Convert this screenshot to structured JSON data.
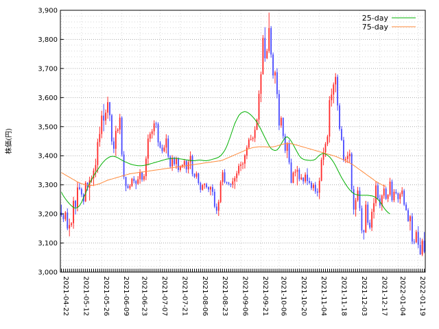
{
  "chart_data": {
    "type": "candlestick",
    "ylabel": "株価(円)",
    "ylim": [
      3000,
      3900
    ],
    "yticks": [
      3000,
      3100,
      3200,
      3300,
      3400,
      3500,
      3600,
      3700,
      3800,
      3900
    ],
    "ytick_labels": [
      "3,000",
      "3,100",
      "3,200",
      "3,300",
      "3,400",
      "3,500",
      "3,600",
      "3,700",
      "3,800",
      "3,900"
    ],
    "xticks": [
      "2021-04-22",
      "2021-05-12",
      "2021-05-26",
      "2021-06-09",
      "2021-06-23",
      "2021-07-07",
      "2021-07-21",
      "2021-08-06",
      "2021-08-23",
      "2021-09-06",
      "2021-09-21",
      "2021-10-06",
      "2021-10-20",
      "2021-11-04",
      "2021-11-18",
      "2021-12-03",
      "2021-12-17",
      "2022-01-04",
      "2022-01-19"
    ],
    "grid": true,
    "legend_position": "top-right",
    "colors": {
      "up": "#ff2a2a",
      "down": "#4a4aff",
      "ma25": "#00b000",
      "ma75": "#ff8a3a"
    },
    "series": [
      {
        "name": "25-day",
        "values": [
          3275,
          3262,
          3252,
          3243,
          3235,
          3228,
          3222,
          3220,
          3222,
          3228,
          3240,
          3256,
          3270,
          3290,
          3305,
          3318,
          3330,
          3342,
          3352,
          3362,
          3372,
          3380,
          3387,
          3392,
          3396,
          3398,
          3398,
          3396,
          3393,
          3389,
          3385,
          3381,
          3378,
          3375,
          3372,
          3370,
          3368,
          3367,
          3366,
          3366,
          3366,
          3367,
          3368,
          3370,
          3372,
          3374,
          3376,
          3378,
          3380,
          3382,
          3384,
          3386,
          3388,
          3389,
          3390,
          3391,
          3391,
          3391,
          3390,
          3389,
          3388,
          3387,
          3386,
          3385,
          3384,
          3383,
          3383,
          3384,
          3385,
          3385,
          3384,
          3383,
          3383,
          3384,
          3386,
          3388,
          3390,
          3392,
          3395,
          3400,
          3408,
          3418,
          3432,
          3450,
          3470,
          3490,
          3510,
          3525,
          3538,
          3546,
          3550,
          3552,
          3550,
          3546,
          3540,
          3533,
          3525,
          3515,
          3503,
          3490,
          3476,
          3462,
          3448,
          3435,
          3425,
          3420,
          3418,
          3420,
          3428,
          3440,
          3452,
          3462,
          3465,
          3460,
          3450,
          3438,
          3425,
          3412,
          3400,
          3392,
          3388,
          3386,
          3385,
          3384,
          3384,
          3385,
          3388,
          3395,
          3402,
          3406,
          3408,
          3406,
          3402,
          3396,
          3388,
          3378,
          3366,
          3352,
          3338,
          3325,
          3313,
          3302,
          3292,
          3283,
          3276,
          3270,
          3267,
          3265,
          3264,
          3264,
          3264,
          3264,
          3264,
          3263,
          3262,
          3260,
          3256,
          3250,
          3242,
          3232,
          3221,
          3212,
          3205,
          3200
        ]
      },
      {
        "name": "75-day",
        "values": [
          3342,
          3338,
          3334,
          3330,
          3326,
          3322,
          3318,
          3314,
          3310,
          3307,
          3304,
          3302,
          3300,
          3299,
          3298,
          3298,
          3299,
          3300,
          3302,
          3304,
          3307,
          3310,
          3313,
          3316,
          3318,
          3320,
          3322,
          3324,
          3326,
          3328,
          3330,
          3332,
          3334,
          3336,
          3338,
          3339,
          3340,
          3341,
          3342,
          3343,
          3344,
          3345,
          3346,
          3347,
          3348,
          3349,
          3350,
          3351,
          3352,
          3353,
          3354,
          3355,
          3356,
          3357,
          3358,
          3359,
          3360,
          3361,
          3362,
          3363,
          3364,
          3365,
          3366,
          3367,
          3368,
          3369,
          3370,
          3371,
          3372,
          3373,
          3374,
          3375,
          3376,
          3377,
          3378,
          3379,
          3380,
          3381,
          3382,
          3383,
          3385,
          3388,
          3391,
          3394,
          3397,
          3400,
          3403,
          3406,
          3409,
          3412,
          3415,
          3418,
          3421,
          3424,
          3426,
          3428,
          3429,
          3430,
          3431,
          3431,
          3431,
          3431,
          3430,
          3430,
          3430,
          3431,
          3432,
          3434,
          3436,
          3438,
          3440,
          3441,
          3442,
          3442,
          3441,
          3440,
          3438,
          3436,
          3434,
          3432,
          3430,
          3428,
          3426,
          3424,
          3422,
          3420,
          3418,
          3416,
          3414,
          3412,
          3410,
          3408,
          3406,
          3404,
          3402,
          3400,
          3398,
          3395,
          3392,
          3389,
          3386,
          3383,
          3379,
          3375,
          3371,
          3367,
          3362,
          3357,
          3352,
          3347,
          3342,
          3337,
          3332,
          3327,
          3322,
          3317,
          3312,
          3308,
          3304,
          3300,
          3297,
          3295
        ]
      }
    ],
    "ohlc": [
      [
        3205,
        3232,
        3190,
        3196
      ],
      [
        3196,
        3203,
        3172,
        3182
      ],
      [
        3182,
        3210,
        3175,
        3205
      ],
      [
        3205,
        3219,
        3144,
        3150
      ],
      [
        3150,
        3184,
        3123,
        3162
      ],
      [
        3162,
        3172,
        3155,
        3168
      ],
      [
        3168,
        3259,
        3149,
        3245
      ],
      [
        3245,
        3248,
        3198,
        3223
      ],
      [
        3223,
        3311,
        3209,
        3291
      ],
      [
        3291,
        3306,
        3282,
        3286
      ],
      [
        3286,
        3291,
        3258,
        3267
      ],
      [
        3267,
        3271,
        3232,
        3243
      ],
      [
        3243,
        3313,
        3241,
        3307
      ],
      [
        3307,
        3309,
        3280,
        3290
      ],
      [
        3290,
        3328,
        3246,
        3316
      ],
      [
        3316,
        3332,
        3307,
        3322
      ],
      [
        3322,
        3357,
        3296,
        3349
      ],
      [
        3349,
        3390,
        3326,
        3368
      ],
      [
        3368,
        3459,
        3341,
        3447
      ],
      [
        3447,
        3500,
        3431,
        3475
      ],
      [
        3475,
        3555,
        3460,
        3538
      ],
      [
        3538,
        3578,
        3484,
        3521
      ],
      [
        3521,
        3559,
        3506,
        3548
      ],
      [
        3548,
        3603,
        3527,
        3584
      ],
      [
        3584,
        3585,
        3519,
        3539
      ],
      [
        3539,
        3544,
        3437,
        3449
      ],
      [
        3449,
        3463,
        3409,
        3424
      ],
      [
        3424,
        3503,
        3399,
        3485
      ],
      [
        3485,
        3495,
        3478,
        3490
      ],
      [
        3490,
        3544,
        3474,
        3531
      ],
      [
        3531,
        3536,
        3397,
        3404
      ],
      [
        3404,
        3416,
        3319,
        3327
      ],
      [
        3327,
        3328,
        3278,
        3296
      ],
      [
        3296,
        3303,
        3287,
        3289
      ],
      [
        3289,
        3302,
        3283,
        3296
      ],
      [
        3296,
        3324,
        3293,
        3321
      ],
      [
        3321,
        3330,
        3305,
        3313
      ],
      [
        3313,
        3317,
        3285,
        3304
      ],
      [
        3304,
        3330,
        3300,
        3319
      ],
      [
        3319,
        3354,
        3304,
        3342
      ],
      [
        3342,
        3346,
        3311,
        3318
      ],
      [
        3318,
        3337,
        3312,
        3330
      ],
      [
        3330,
        3398,
        3316,
        3390
      ],
      [
        3390,
        3473,
        3367,
        3459
      ],
      [
        3459,
        3482,
        3447,
        3475
      ],
      [
        3475,
        3492,
        3459,
        3484
      ],
      [
        3484,
        3522,
        3470,
        3511
      ],
      [
        3511,
        3517,
        3495,
        3509
      ],
      [
        3509,
        3515,
        3432,
        3446
      ],
      [
        3446,
        3451,
        3425,
        3428
      ],
      [
        3428,
        3438,
        3408,
        3416
      ],
      [
        3416,
        3437,
        3412,
        3428
      ],
      [
        3428,
        3474,
        3408,
        3459
      ],
      [
        3459,
        3470,
        3391,
        3397
      ],
      [
        3397,
        3402,
        3356,
        3363
      ],
      [
        3363,
        3402,
        3348,
        3393
      ],
      [
        3393,
        3397,
        3365,
        3371
      ],
      [
        3371,
        3397,
        3355,
        3391
      ],
      [
        3391,
        3395,
        3343,
        3351
      ],
      [
        3351,
        3367,
        3345,
        3362
      ],
      [
        3362,
        3371,
        3358,
        3368
      ],
      [
        3368,
        3389,
        3356,
        3382
      ],
      [
        3382,
        3385,
        3341,
        3353
      ],
      [
        3353,
        3384,
        3339,
        3378
      ],
      [
        3378,
        3415,
        3354,
        3400
      ],
      [
        3400,
        3404,
        3329,
        3337
      ],
      [
        3337,
        3340,
        3323,
        3328
      ],
      [
        3328,
        3346,
        3321,
        3339
      ],
      [
        3339,
        3342,
        3299,
        3306
      ],
      [
        3306,
        3311,
        3273,
        3283
      ],
      [
        3283,
        3303,
        3280,
        3299
      ],
      [
        3299,
        3306,
        3286,
        3303
      ],
      [
        3303,
        3307,
        3287,
        3292
      ],
      [
        3292,
        3295,
        3275,
        3284
      ],
      [
        3284,
        3296,
        3264,
        3292
      ],
      [
        3292,
        3302,
        3263,
        3276
      ],
      [
        3276,
        3286,
        3220,
        3225
      ],
      [
        3225,
        3236,
        3200,
        3211
      ],
      [
        3211,
        3249,
        3193,
        3241
      ],
      [
        3241,
        3316,
        3237,
        3310
      ],
      [
        3310,
        3351,
        3298,
        3343
      ],
      [
        3343,
        3354,
        3305,
        3310
      ],
      [
        3310,
        3311,
        3301,
        3308
      ],
      [
        3308,
        3310,
        3298,
        3304
      ],
      [
        3304,
        3305,
        3292,
        3301
      ],
      [
        3301,
        3324,
        3289,
        3312
      ],
      [
        3312,
        3330,
        3286,
        3323
      ],
      [
        3323,
        3348,
        3310,
        3339
      ],
      [
        3339,
        3373,
        3332,
        3365
      ],
      [
        3365,
        3379,
        3347,
        3370
      ],
      [
        3370,
        3379,
        3354,
        3373
      ],
      [
        3373,
        3406,
        3356,
        3401
      ],
      [
        3401,
        3436,
        3388,
        3428
      ],
      [
        3428,
        3462,
        3425,
        3456
      ],
      [
        3456,
        3472,
        3452,
        3457
      ],
      [
        3457,
        3466,
        3449,
        3461
      ],
      [
        3461,
        3501,
        3447,
        3489
      ],
      [
        3489,
        3528,
        3488,
        3524
      ],
      [
        3524,
        3625,
        3509,
        3613
      ],
      [
        3613,
        3689,
        3584,
        3680
      ],
      [
        3680,
        3815,
        3679,
        3805
      ],
      [
        3805,
        3842,
        3723,
        3735
      ],
      [
        3735,
        3768,
        3732,
        3760
      ],
      [
        3760,
        3892,
        3753,
        3839
      ],
      [
        3839,
        3846,
        3737,
        3748
      ],
      [
        3748,
        3755,
        3665,
        3676
      ],
      [
        3676,
        3693,
        3648,
        3687
      ],
      [
        3687,
        3701,
        3597,
        3612
      ],
      [
        3612,
        3626,
        3488,
        3504
      ],
      [
        3504,
        3536,
        3496,
        3530
      ],
      [
        3530,
        3532,
        3458,
        3468
      ],
      [
        3468,
        3476,
        3409,
        3417
      ],
      [
        3417,
        3447,
        3392,
        3443
      ],
      [
        3443,
        3454,
        3370,
        3377
      ],
      [
        3377,
        3390,
        3305,
        3307
      ],
      [
        3307,
        3346,
        3305,
        3342
      ],
      [
        3342,
        3354,
        3329,
        3345
      ],
      [
        3345,
        3365,
        3298,
        3352
      ],
      [
        3352,
        3358,
        3312,
        3319
      ],
      [
        3319,
        3337,
        3316,
        3325
      ],
      [
        3325,
        3326,
        3302,
        3312
      ],
      [
        3312,
        3343,
        3305,
        3335
      ],
      [
        3335,
        3357,
        3299,
        3313
      ],
      [
        3313,
        3325,
        3302,
        3307
      ],
      [
        3307,
        3313,
        3282,
        3289
      ],
      [
        3289,
        3306,
        3279,
        3300
      ],
      [
        3300,
        3310,
        3269,
        3277
      ],
      [
        3277,
        3288,
        3260,
        3273
      ],
      [
        3273,
        3325,
        3251,
        3314
      ],
      [
        3314,
        3394,
        3312,
        3386
      ],
      [
        3386,
        3428,
        3367,
        3412
      ],
      [
        3412,
        3447,
        3396,
        3440
      ],
      [
        3440,
        3472,
        3433,
        3466
      ],
      [
        3466,
        3605,
        3445,
        3591
      ],
      [
        3591,
        3631,
        3569,
        3610
      ],
      [
        3610,
        3652,
        3580,
        3645
      ],
      [
        3645,
        3684,
        3618,
        3671
      ],
      [
        3671,
        3679,
        3555,
        3573
      ],
      [
        3573,
        3581,
        3486,
        3492
      ],
      [
        3492,
        3502,
        3451,
        3454
      ],
      [
        3454,
        3465,
        3379,
        3386
      ],
      [
        3386,
        3397,
        3375,
        3389
      ],
      [
        3389,
        3414,
        3375,
        3399
      ],
      [
        3399,
        3421,
        3377,
        3407
      ],
      [
        3407,
        3412,
        3273,
        3285
      ],
      [
        3285,
        3297,
        3198,
        3215
      ],
      [
        3215,
        3255,
        3191,
        3247
      ],
      [
        3247,
        3293,
        3242,
        3280
      ],
      [
        3280,
        3292,
        3210,
        3219
      ],
      [
        3219,
        3229,
        3133,
        3143
      ],
      [
        3143,
        3146,
        3112,
        3137
      ],
      [
        3137,
        3245,
        3134,
        3232
      ],
      [
        3232,
        3242,
        3162,
        3170
      ],
      [
        3170,
        3180,
        3147,
        3153
      ],
      [
        3153,
        3218,
        3141,
        3207
      ],
      [
        3207,
        3255,
        3184,
        3237
      ],
      [
        3237,
        3311,
        3226,
        3298
      ],
      [
        3298,
        3309,
        3248,
        3253
      ],
      [
        3253,
        3266,
        3220,
        3229
      ],
      [
        3229,
        3267,
        3211,
        3263
      ],
      [
        3263,
        3301,
        3252,
        3287
      ],
      [
        3287,
        3293,
        3248,
        3252
      ],
      [
        3252,
        3268,
        3241,
        3266
      ],
      [
        3266,
        3324,
        3260,
        3311
      ],
      [
        3311,
        3318,
        3241,
        3247
      ],
      [
        3247,
        3285,
        3240,
        3276
      ],
      [
        3276,
        3285,
        3267,
        3271
      ],
      [
        3271,
        3274,
        3239,
        3251
      ],
      [
        3251,
        3274,
        3235,
        3268
      ],
      [
        3268,
        3292,
        3259,
        3280
      ],
      [
        3280,
        3286,
        3227,
        3232
      ],
      [
        3232,
        3240,
        3211,
        3213
      ],
      [
        3213,
        3220,
        3173,
        3175
      ],
      [
        3175,
        3196,
        3143,
        3192
      ],
      [
        3192,
        3203,
        3096,
        3105
      ],
      [
        3105,
        3114,
        3096,
        3103
      ],
      [
        3103,
        3145,
        3100,
        3138
      ],
      [
        3138,
        3158,
        3082,
        3094
      ],
      [
        3094,
        3118,
        3059,
        3061
      ],
      [
        3061,
        3115,
        3055,
        3108
      ],
      [
        3108,
        3138,
        3065,
        3070
      ]
    ]
  }
}
